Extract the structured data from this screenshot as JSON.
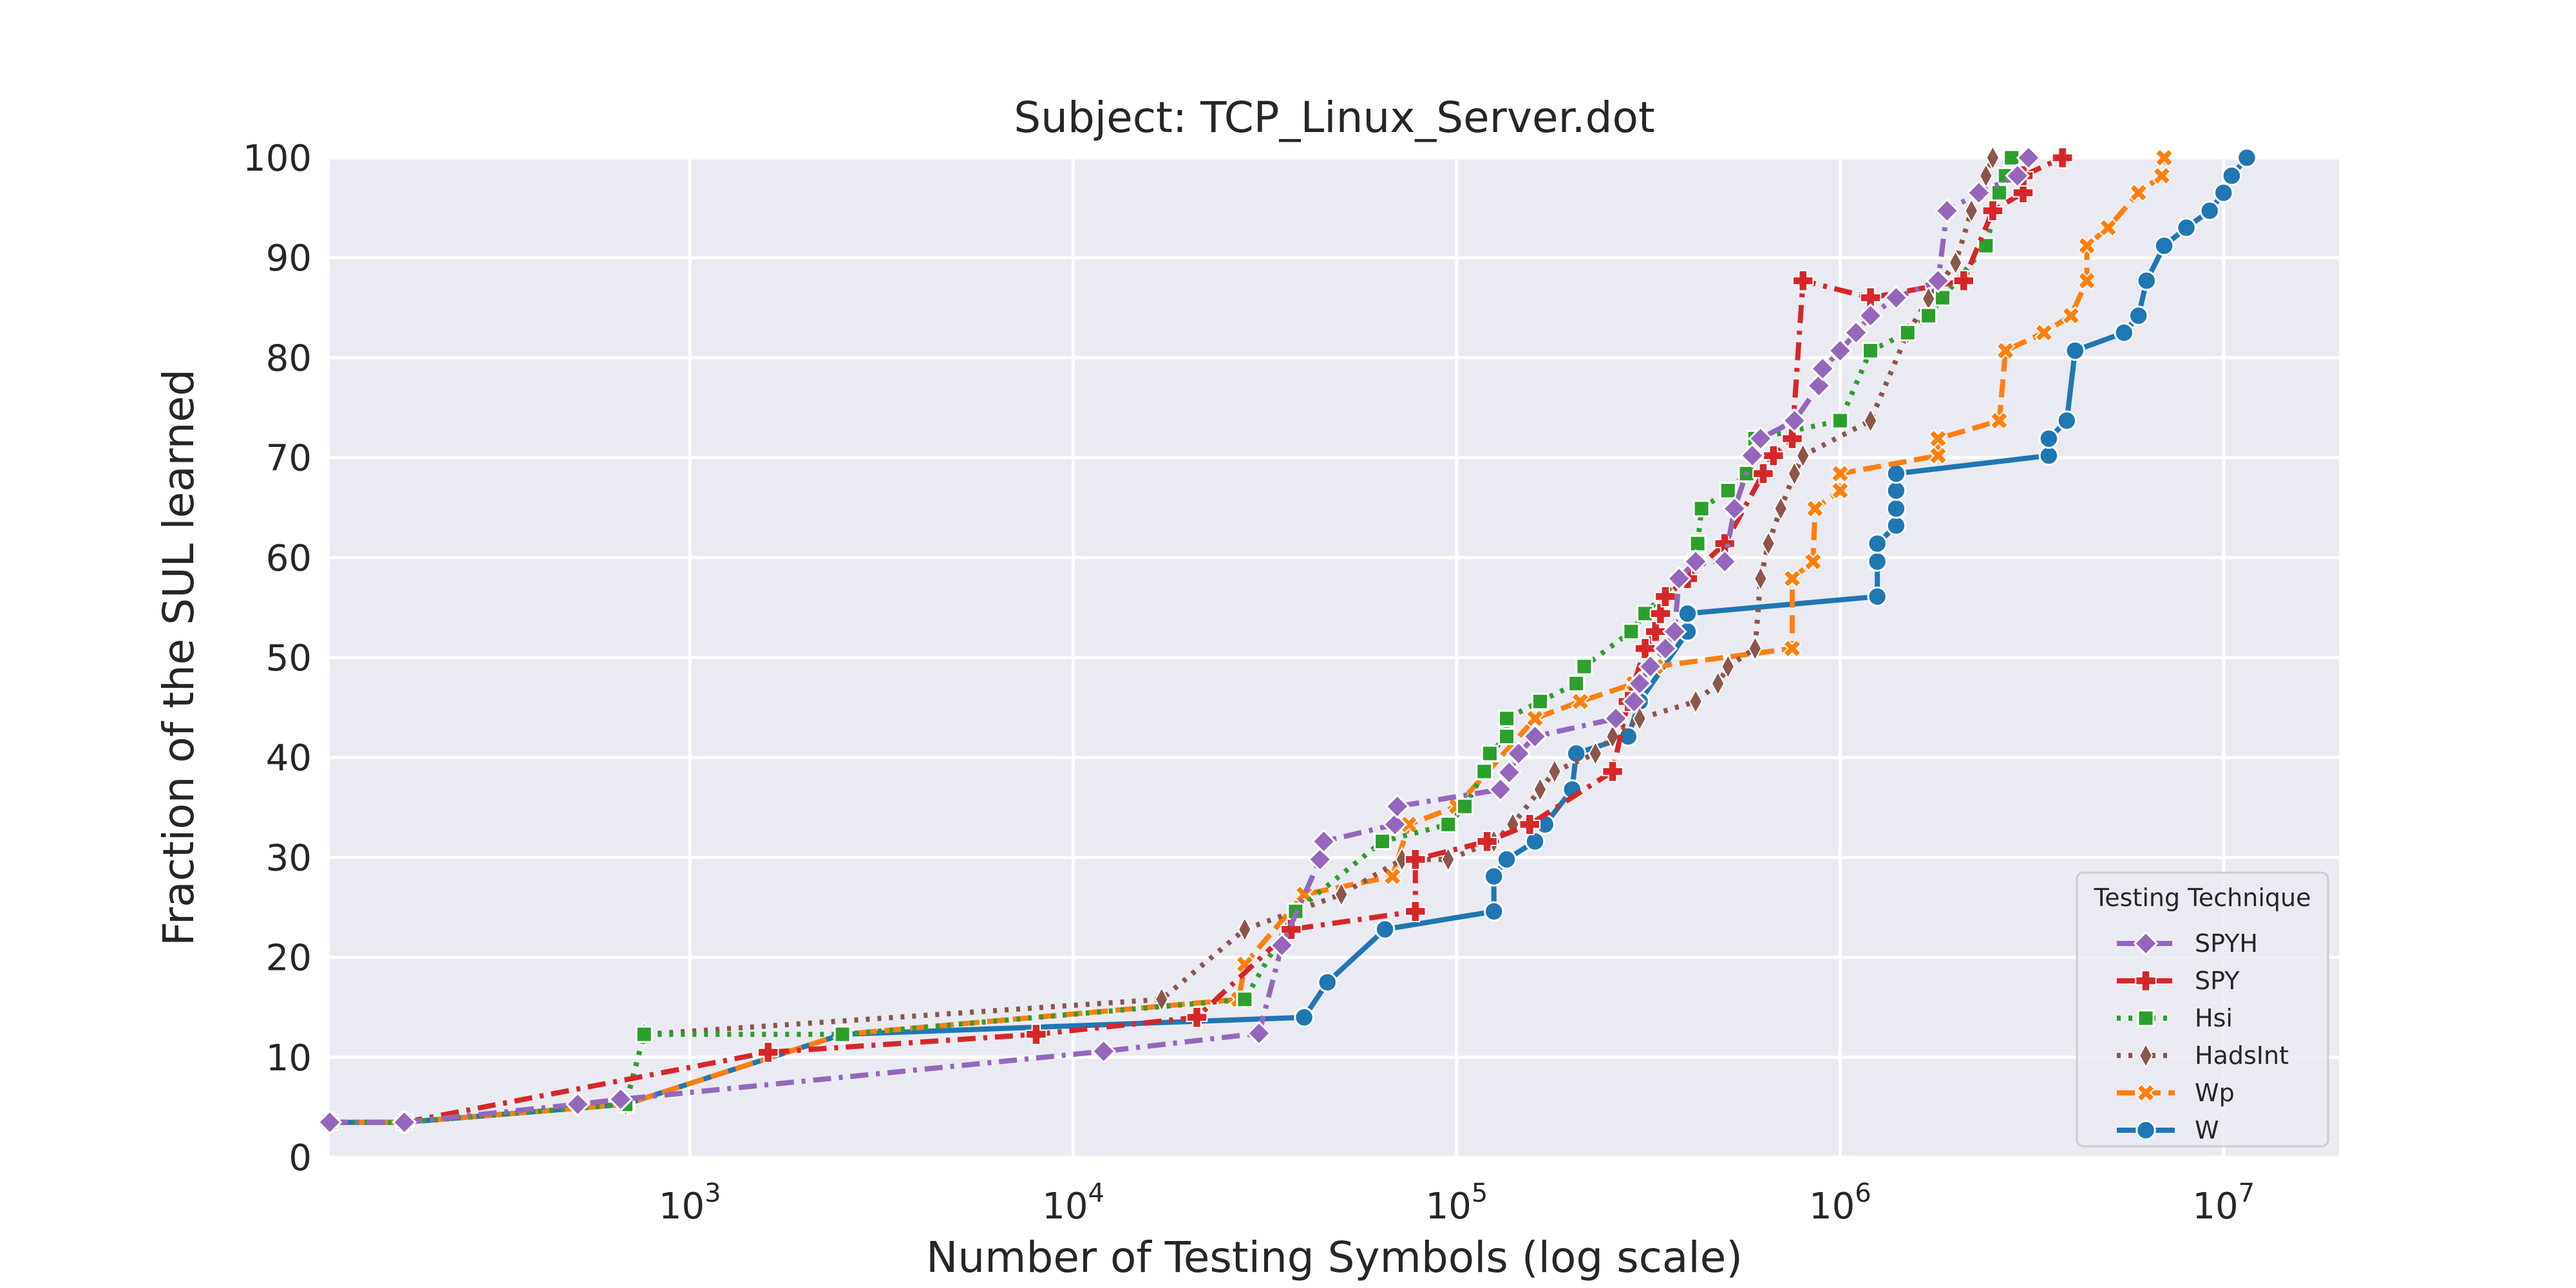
{
  "chart_data": {
    "type": "line",
    "title": "Subject: TCP_Linux_Server.dot",
    "xlabel": "Number of Testing Symbols (log scale)",
    "ylabel": "Fraction of the SUL learned",
    "x_scale": "log",
    "xlim": [
      115,
      20000000
    ],
    "ylim": [
      0,
      100
    ],
    "x_ticks": [
      1000,
      10000,
      100000,
      1000000,
      10000000
    ],
    "x_tick_labels": [
      {
        "base": "10",
        "exp": "3"
      },
      {
        "base": "10",
        "exp": "4"
      },
      {
        "base": "10",
        "exp": "5"
      },
      {
        "base": "10",
        "exp": "6"
      },
      {
        "base": "10",
        "exp": "7"
      }
    ],
    "y_ticks": [
      0,
      10,
      20,
      30,
      40,
      50,
      60,
      70,
      80,
      90,
      100
    ],
    "y_tick_labels": [
      "0",
      "10",
      "20",
      "30",
      "40",
      "50",
      "60",
      "70",
      "80",
      "90",
      "100"
    ],
    "grid": true,
    "background": "#eaeaf2",
    "legend": {
      "title": "Testing Technique",
      "placement": "lower-right"
    },
    "series": [
      {
        "name": "SPYH",
        "color": "#9467bd",
        "marker": "diamond",
        "dash": "dashdot",
        "points": [
          [
            115,
            3.5
          ],
          [
            180,
            3.5
          ],
          [
            510,
            5.3
          ],
          [
            660,
            5.8
          ],
          [
            12000,
            10.6
          ],
          [
            30500,
            12.4
          ],
          [
            35000,
            21.2
          ],
          [
            44000,
            29.8
          ],
          [
            45000,
            31.6
          ],
          [
            69000,
            33.3
          ],
          [
            70000,
            35.1
          ],
          [
            130000,
            36.8
          ],
          [
            137000,
            38.5
          ],
          [
            145000,
            40.4
          ],
          [
            160000,
            42.1
          ],
          [
            260000,
            43.9
          ],
          [
            290000,
            45.6
          ],
          [
            300000,
            47.4
          ],
          [
            320000,
            49.1
          ],
          [
            350000,
            50.9
          ],
          [
            370000,
            52.6
          ],
          [
            380000,
            57.9
          ],
          [
            420000,
            59.6
          ],
          [
            500000,
            59.6
          ],
          [
            530000,
            64.9
          ],
          [
            590000,
            70.2
          ],
          [
            620000,
            71.9
          ],
          [
            760000,
            73.7
          ],
          [
            880000,
            77.2
          ],
          [
            900000,
            78.9
          ],
          [
            1000000,
            80.7
          ],
          [
            1100000,
            82.5
          ],
          [
            1200000,
            84.2
          ],
          [
            1400000,
            86.0
          ],
          [
            1800000,
            87.7
          ],
          [
            1900000,
            94.7
          ],
          [
            2300000,
            96.5
          ],
          [
            2900000,
            98.2
          ],
          [
            3100000,
            100
          ]
        ]
      },
      {
        "name": "SPY",
        "color": "#d62728",
        "marker": "plus",
        "dash": "dashdot",
        "points": [
          [
            115,
            3.5
          ],
          [
            180,
            3.5
          ],
          [
            1600,
            10.5
          ],
          [
            8000,
            12.3
          ],
          [
            21000,
            14.0
          ],
          [
            37000,
            22.8
          ],
          [
            78000,
            24.6
          ],
          [
            78000,
            29.8
          ],
          [
            120000,
            31.6
          ],
          [
            155000,
            33.3
          ],
          [
            255000,
            38.6
          ],
          [
            280000,
            45.6
          ],
          [
            310000,
            50.9
          ],
          [
            330000,
            52.6
          ],
          [
            340000,
            54.4
          ],
          [
            350000,
            56.1
          ],
          [
            400000,
            57.9
          ],
          [
            500000,
            61.4
          ],
          [
            630000,
            68.4
          ],
          [
            670000,
            70.2
          ],
          [
            750000,
            71.9
          ],
          [
            800000,
            87.7
          ],
          [
            1200000,
            86.0
          ],
          [
            2100000,
            87.7
          ],
          [
            2500000,
            94.7
          ],
          [
            3000000,
            96.5
          ],
          [
            3000000,
            98.2
          ],
          [
            3800000,
            100
          ]
        ]
      },
      {
        "name": "Hsi",
        "color": "#2ca02c",
        "marker": "square",
        "dash": "dotted",
        "points": [
          [
            115,
            3.5
          ],
          [
            180,
            3.5
          ],
          [
            680,
            5.3
          ],
          [
            760,
            12.3
          ],
          [
            2500,
            12.3
          ],
          [
            28000,
            15.8
          ],
          [
            38000,
            24.6
          ],
          [
            64000,
            31.6
          ],
          [
            95000,
            33.3
          ],
          [
            105000,
            35.1
          ],
          [
            118000,
            38.6
          ],
          [
            122000,
            40.4
          ],
          [
            135000,
            42.1
          ],
          [
            135000,
            43.9
          ],
          [
            165000,
            45.6
          ],
          [
            205000,
            47.4
          ],
          [
            215000,
            49.1
          ],
          [
            285000,
            52.6
          ],
          [
            310000,
            54.4
          ],
          [
            420000,
            59.6
          ],
          [
            425000,
            61.4
          ],
          [
            435000,
            64.9
          ],
          [
            510000,
            66.7
          ],
          [
            570000,
            68.4
          ],
          [
            600000,
            71.9
          ],
          [
            1000000,
            73.7
          ],
          [
            1200000,
            80.7
          ],
          [
            1500000,
            82.5
          ],
          [
            1700000,
            84.2
          ],
          [
            1850000,
            86.0
          ],
          [
            2400000,
            91.2
          ],
          [
            2600000,
            96.5
          ],
          [
            2700000,
            98.2
          ],
          [
            2800000,
            100
          ]
        ]
      },
      {
        "name": "HadsInt",
        "color": "#8c564b",
        "marker": "thin_diamond",
        "dash": "dotted",
        "points": [
          [
            115,
            3.5
          ],
          [
            180,
            3.5
          ],
          [
            680,
            5.3
          ],
          [
            760,
            12.3
          ],
          [
            17000,
            15.8
          ],
          [
            28000,
            22.8
          ],
          [
            50000,
            26.3
          ],
          [
            72000,
            29.8
          ],
          [
            95000,
            29.8
          ],
          [
            125000,
            31.6
          ],
          [
            140000,
            33.3
          ],
          [
            165000,
            36.8
          ],
          [
            180000,
            38.6
          ],
          [
            230000,
            40.4
          ],
          [
            255000,
            42.1
          ],
          [
            300000,
            43.9
          ],
          [
            420000,
            45.6
          ],
          [
            480000,
            47.4
          ],
          [
            510000,
            49.1
          ],
          [
            600000,
            50.9
          ],
          [
            620000,
            57.9
          ],
          [
            650000,
            61.4
          ],
          [
            700000,
            64.9
          ],
          [
            760000,
            68.4
          ],
          [
            800000,
            70.2
          ],
          [
            1200000,
            73.7
          ],
          [
            1500000,
            82.5
          ],
          [
            1700000,
            85.9
          ],
          [
            2000000,
            89.5
          ],
          [
            2200000,
            94.7
          ],
          [
            2400000,
            98.2
          ],
          [
            2500000,
            100
          ]
        ]
      },
      {
        "name": "Wp",
        "color": "#ff7f0e",
        "marker": "x",
        "dash": "dashed",
        "points": [
          [
            115,
            3.5
          ],
          [
            180,
            3.5
          ],
          [
            680,
            5.3
          ],
          [
            2500,
            12.3
          ],
          [
            27000,
            15.8
          ],
          [
            28000,
            19.3
          ],
          [
            40000,
            26.3
          ],
          [
            68000,
            28.1
          ],
          [
            75000,
            33.3
          ],
          [
            100000,
            35.1
          ],
          [
            160000,
            43.9
          ],
          [
            210000,
            45.6
          ],
          [
            290000,
            47.4
          ],
          [
            330000,
            49.1
          ],
          [
            750000,
            50.9
          ],
          [
            750000,
            57.9
          ],
          [
            850000,
            59.6
          ],
          [
            860000,
            64.9
          ],
          [
            1000000,
            66.7
          ],
          [
            1000000,
            68.4
          ],
          [
            1800000,
            70.2
          ],
          [
            1800000,
            71.9
          ],
          [
            2600000,
            73.7
          ],
          [
            2700000,
            80.7
          ],
          [
            3400000,
            82.5
          ],
          [
            4000000,
            84.2
          ],
          [
            4400000,
            87.7
          ],
          [
            4400000,
            91.2
          ],
          [
            5000000,
            93.0
          ],
          [
            6000000,
            96.5
          ],
          [
            6900000,
            98.2
          ],
          [
            7000000,
            100
          ]
        ]
      },
      {
        "name": "W",
        "color": "#1f77b4",
        "marker": "circle",
        "dash": "solid",
        "points": [
          [
            115,
            3.5
          ],
          [
            180,
            3.5
          ],
          [
            680,
            5.3
          ],
          [
            2500,
            12.3
          ],
          [
            40000,
            14.0
          ],
          [
            46000,
            17.5
          ],
          [
            65000,
            22.8
          ],
          [
            125000,
            24.6
          ],
          [
            125000,
            28.1
          ],
          [
            135000,
            29.8
          ],
          [
            160000,
            31.6
          ],
          [
            170000,
            33.3
          ],
          [
            200000,
            36.8
          ],
          [
            205000,
            40.4
          ],
          [
            280000,
            42.1
          ],
          [
            300000,
            45.6
          ],
          [
            400000,
            52.6
          ],
          [
            400000,
            54.4
          ],
          [
            1250000,
            56.1
          ],
          [
            1250000,
            59.6
          ],
          [
            1250000,
            61.4
          ],
          [
            1400000,
            63.2
          ],
          [
            1400000,
            64.9
          ],
          [
            1400000,
            66.7
          ],
          [
            1400000,
            68.4
          ],
          [
            3500000,
            70.2
          ],
          [
            3500000,
            71.9
          ],
          [
            3900000,
            73.7
          ],
          [
            4100000,
            80.7
          ],
          [
            5500000,
            82.5
          ],
          [
            6000000,
            84.2
          ],
          [
            6300000,
            87.7
          ],
          [
            7000000,
            91.2
          ],
          [
            8000000,
            93.0
          ],
          [
            9200000,
            94.7
          ],
          [
            10000000,
            96.5
          ],
          [
            10500000,
            98.2
          ],
          [
            11500000,
            100
          ]
        ]
      }
    ]
  }
}
